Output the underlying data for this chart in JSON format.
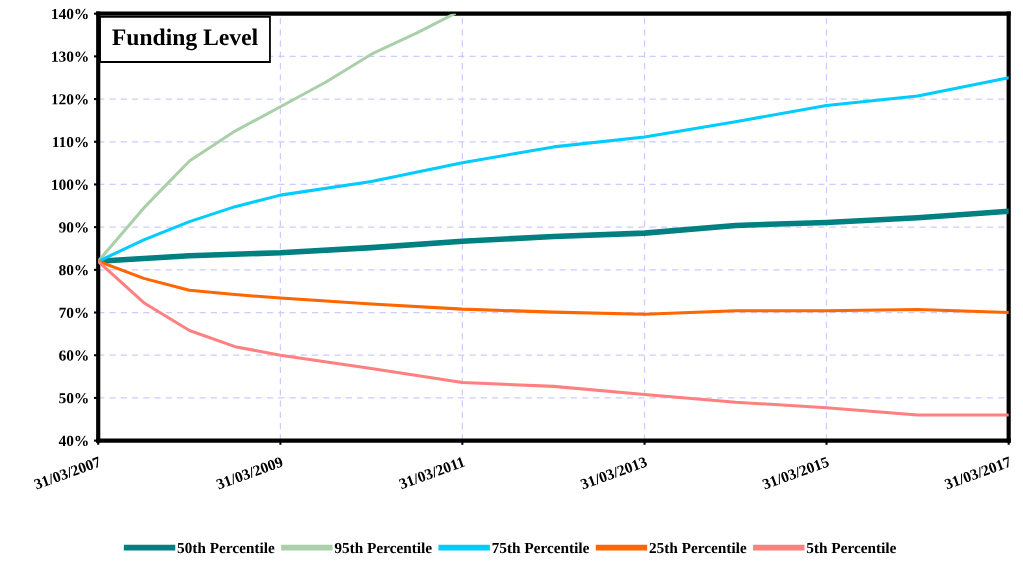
{
  "chart_data": {
    "type": "line",
    "title": "Funding Level",
    "grid": true,
    "legend": "bottom",
    "marker": "none",
    "line_style": "solid",
    "xlim": [
      "2007-03-31",
      "2017-03-31"
    ],
    "xticks": [
      {
        "value": "2007-03-31",
        "label": "31/03/2007"
      },
      {
        "value": "2009-03-31",
        "label": "31/03/2009"
      },
      {
        "value": "2011-03-31",
        "label": "31/03/2011"
      },
      {
        "value": "2013-03-31",
        "label": "31/03/2013"
      },
      {
        "value": "2015-03-31",
        "label": "31/03/2015"
      },
      {
        "value": "2017-03-31",
        "label": "31/03/2017"
      }
    ],
    "ylim": [
      40,
      140
    ],
    "yticks": [
      {
        "value": 40,
        "label": "40%"
      },
      {
        "value": 50,
        "label": "50%"
      },
      {
        "value": 60,
        "label": "60%"
      },
      {
        "value": 70,
        "label": "70%"
      },
      {
        "value": 80,
        "label": "80%"
      },
      {
        "value": 90,
        "label": "90%"
      },
      {
        "value": 100,
        "label": "100%"
      },
      {
        "value": 110,
        "label": "110%"
      },
      {
        "value": 120,
        "label": "120%"
      },
      {
        "value": 130,
        "label": "130%"
      },
      {
        "value": 140,
        "label": "140%"
      }
    ],
    "series": [
      {
        "name": "50th Percentile",
        "color": "#008080",
        "x": [
          "2007-03-31",
          "2008-03-31",
          "2009-03-31",
          "2010-03-31",
          "2011-03-31",
          "2012-03-31",
          "2013-03-31",
          "2014-03-31",
          "2015-03-31",
          "2016-03-31",
          "2017-03-31"
        ],
        "values": [
          82,
          83.3,
          84,
          85.2,
          86.7,
          87.8,
          88.6,
          90.4,
          91.1,
          92.2,
          93.7
        ]
      },
      {
        "name": "95th Percentile",
        "color": "#a9d0a9",
        "x": [
          "2007-03-31",
          "2007-09-30",
          "2008-03-31",
          "2008-09-30",
          "2009-03-31",
          "2009-09-30",
          "2010-03-31",
          "2010-09-30",
          "2011-02-28"
        ],
        "values": [
          82,
          94.5,
          105.5,
          112.5,
          118.2,
          124,
          130.5,
          135.5,
          140
        ]
      },
      {
        "name": "75th Percentile",
        "color": "#00ccff",
        "x": [
          "2007-03-31",
          "2007-09-30",
          "2008-03-31",
          "2008-09-30",
          "2009-03-31",
          "2010-03-31",
          "2011-03-31",
          "2012-03-31",
          "2013-03-31",
          "2014-03-31",
          "2015-03-31",
          "2016-03-31",
          "2017-03-31"
        ],
        "values": [
          82,
          87,
          91.3,
          94.8,
          97.5,
          100.7,
          105.1,
          108.8,
          111.1,
          114.7,
          118.5,
          120.7,
          125
        ]
      },
      {
        "name": "25th Percentile",
        "color": "#ff6600",
        "x": [
          "2007-03-31",
          "2007-09-30",
          "2008-03-31",
          "2008-09-30",
          "2009-03-31",
          "2010-03-31",
          "2011-03-31",
          "2012-03-31",
          "2013-03-31",
          "2014-03-31",
          "2015-03-31",
          "2016-03-31",
          "2017-03-31"
        ],
        "values": [
          82,
          78,
          75.2,
          74.2,
          73.4,
          72,
          70.8,
          70.1,
          69.6,
          70.4,
          70.4,
          70.7,
          70
        ]
      },
      {
        "name": "5th Percentile",
        "color": "#ff8080",
        "x": [
          "2007-03-31",
          "2007-09-30",
          "2008-03-31",
          "2008-09-30",
          "2009-03-31",
          "2010-03-31",
          "2011-03-31",
          "2012-03-31",
          "2013-03-31",
          "2014-03-31",
          "2015-03-31",
          "2016-03-31",
          "2017-03-31"
        ],
        "values": [
          82,
          72.3,
          65.8,
          62,
          60,
          56.9,
          53.6,
          52.7,
          50.8,
          49,
          47.7,
          46,
          46
        ]
      }
    ]
  }
}
